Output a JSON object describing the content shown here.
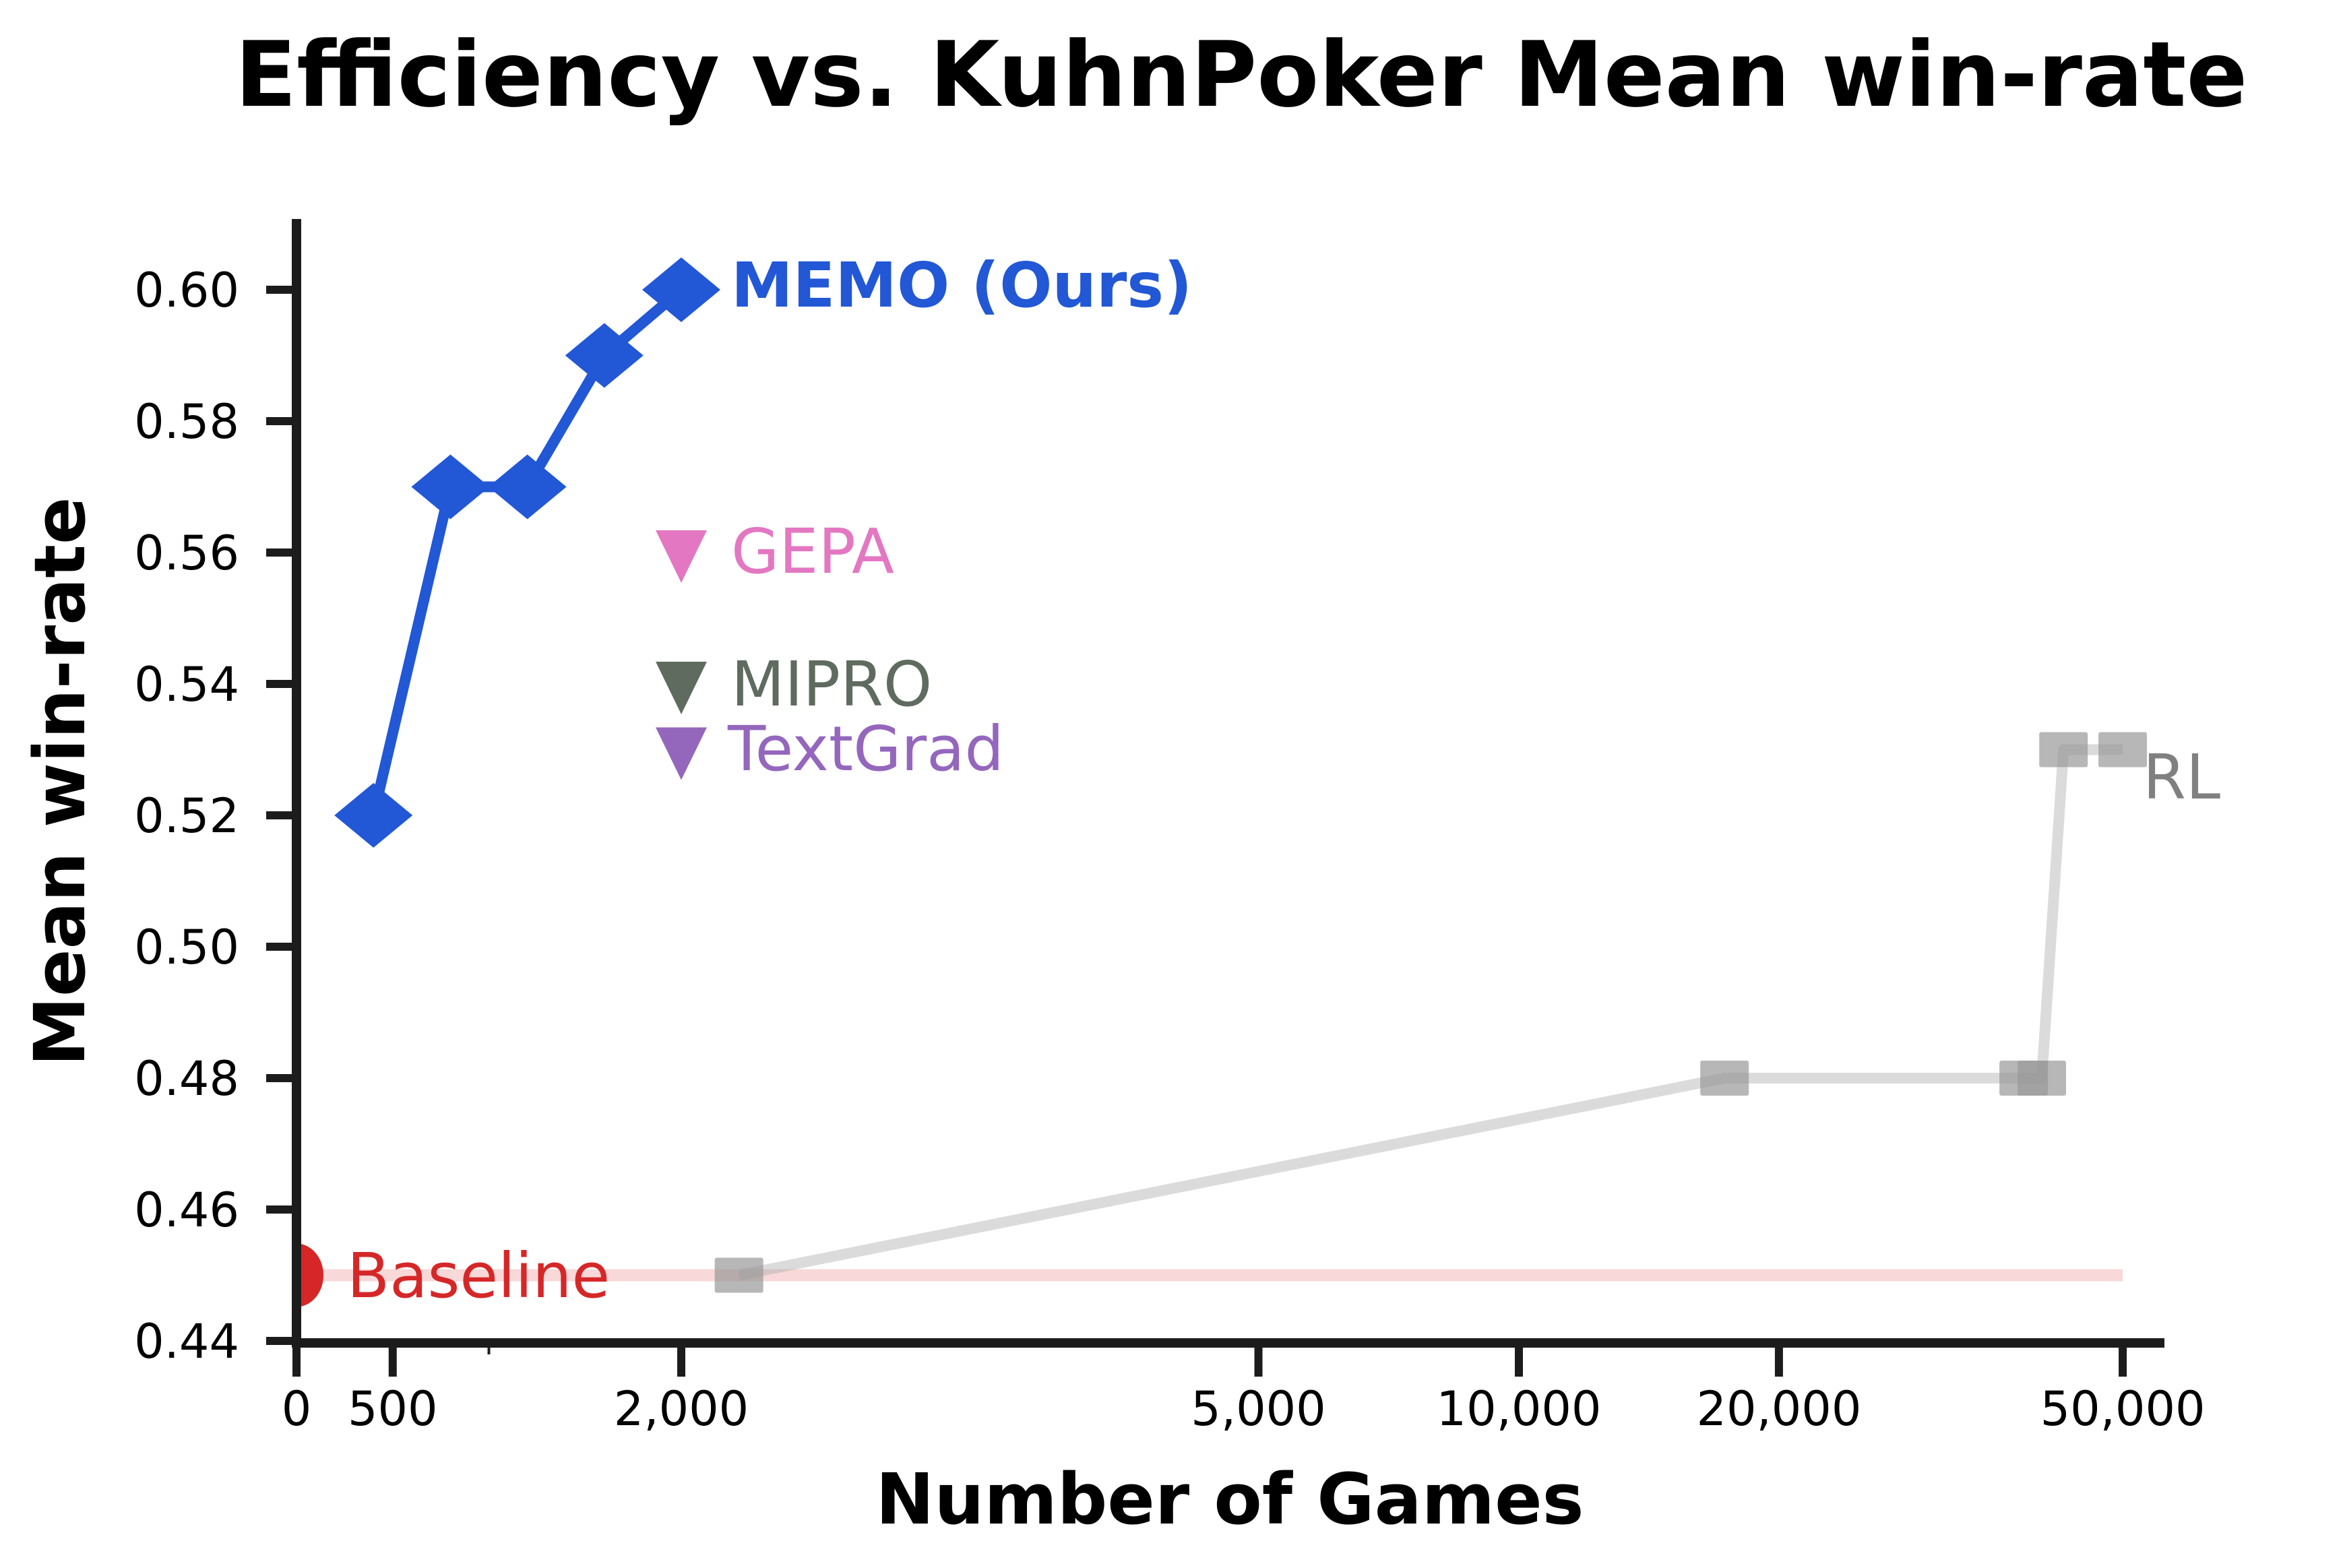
{
  "chart_data": {
    "type": "line",
    "title": "Efficiency vs. KuhnPoker Mean win-rate",
    "xlabel": "Number of Games",
    "ylabel": "Mean win-rate",
    "x_scale": "linear 0-5000, log above 5000",
    "xlim": [
      0,
      55000
    ],
    "ylim": [
      0.44,
      0.61
    ],
    "x_ticks": [
      0,
      500,
      2000,
      5000,
      10000,
      20000,
      50000
    ],
    "x_tick_labels": [
      "0",
      "500",
      "2,000",
      "5,000",
      "10,000",
      "20,000",
      "50,000"
    ],
    "x_minor_ticks": [
      1000
    ],
    "y_ticks": [
      0.44,
      0.46,
      0.48,
      0.5,
      0.52,
      0.54,
      0.56,
      0.58,
      0.6
    ],
    "y_tick_labels": [
      "0.44",
      "0.46",
      "0.48",
      "0.50",
      "0.52",
      "0.54",
      "0.56",
      "0.58",
      "0.60"
    ],
    "grid": false,
    "legend": "inline labels",
    "series": [
      {
        "name": "MEMO (Ours)",
        "label": "MEMO (Ours)",
        "color": "#2257d6",
        "marker": "diamond",
        "x": [
          400,
          800,
          1200,
          1600,
          2000
        ],
        "values": [
          0.52,
          0.57,
          0.57,
          0.59,
          0.6
        ]
      },
      {
        "name": "GEPA",
        "label": "GEPA",
        "color": "#e377c2",
        "marker": "triangle-down",
        "x": [
          2000
        ],
        "values": [
          0.56
        ]
      },
      {
        "name": "MIPRO",
        "label": "MIPRO",
        "color": "#5f6b5f",
        "marker": "triangle-down",
        "x": [
          2000
        ],
        "values": [
          0.54
        ]
      },
      {
        "name": "TextGrad",
        "label": "TextGrad",
        "color": "#9467bd",
        "marker": "triangle-down",
        "x": [
          2000
        ],
        "values": [
          0.53
        ]
      },
      {
        "name": "RL",
        "label": "RL",
        "color": "#a0a0a0",
        "marker": "square",
        "x": [
          2300,
          17300,
          38400,
          40300,
          42700,
          50000
        ],
        "values": [
          0.45,
          0.48,
          0.48,
          0.48,
          0.53,
          0.53
        ]
      },
      {
        "name": "Baseline",
        "label": "Baseline",
        "color": "#d62728",
        "marker": "circle",
        "x": [
          0
        ],
        "values": [
          0.45
        ],
        "reference_line_to": 50000
      }
    ]
  }
}
